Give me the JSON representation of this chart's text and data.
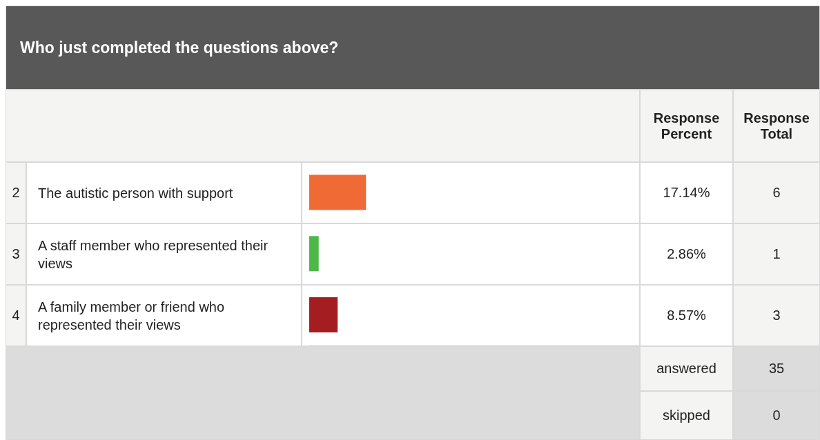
{
  "chart_data": {
    "type": "bar",
    "orientation": "horizontal",
    "title": "Who just completed the questions above?",
    "categories": [
      "The autistic person with support",
      "A staff member who represented their views",
      "A family member or friend who represented their views"
    ],
    "values": [
      17.14,
      2.86,
      8.57
    ],
    "colors": [
      "#f06a35",
      "#4db748",
      "#a41d21"
    ],
    "value_labels": [
      "17.14%",
      "2.86%",
      "8.57%"
    ],
    "xlim": [
      0,
      100
    ],
    "tick_labels": false,
    "grid": false,
    "annotations": [
      "Response Percent",
      "Response Total",
      "2",
      "3",
      "4",
      "6",
      "1",
      "3",
      "answered",
      "35",
      "skipped",
      "0"
    ]
  }
}
